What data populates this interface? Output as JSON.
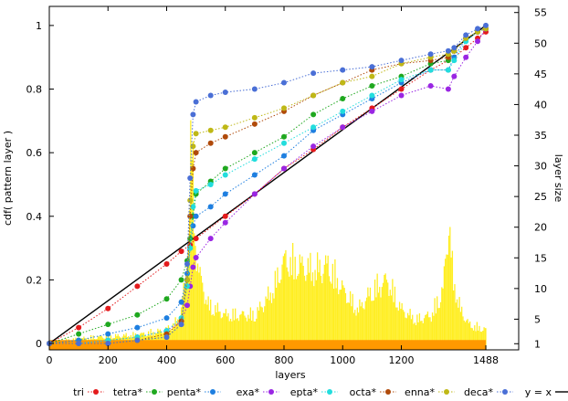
{
  "chart_data": {
    "type": "line",
    "xlabel": "layers",
    "ylabel": "cdf( pattern layer )",
    "y2label": "layer size",
    "xlim": [
      0,
      1600
    ],
    "ylim": [
      -0.02,
      1.06
    ],
    "y2lim": [
      0,
      56
    ],
    "x_ticks": [
      "0",
      "200",
      "400",
      "600",
      "800",
      "1000",
      "1200",
      "1488"
    ],
    "x_tick_values": [
      0,
      200,
      400,
      600,
      800,
      1000,
      1200,
      1488
    ],
    "y_ticks": [
      "0",
      "0.2",
      "0.4",
      "0.6",
      "0.8",
      "1"
    ],
    "y_tick_values": [
      0,
      0.2,
      0.4,
      0.6,
      0.8,
      1
    ],
    "y2_ticks": [
      "1",
      "5",
      "10",
      "15",
      "20",
      "25",
      "30",
      "35",
      "40",
      "45",
      "50",
      "55"
    ],
    "y2_tick_values": [
      1,
      5,
      10,
      15,
      20,
      25,
      30,
      35,
      40,
      45,
      50,
      55
    ],
    "grid": false,
    "legend_position": "bottom",
    "colors": {
      "tri": "#e41a1c",
      "tetra": "#1fa81f",
      "penta": "#1e7fe0",
      "exa": "#9a26e3",
      "epta": "#22dddd",
      "octa": "#b04a0a",
      "enna": "#bfb816",
      "deca": "#4a6fd6",
      "identity": "#000000",
      "layer_size_fill": "#ffee22",
      "layer_size_base": "#ff9900"
    },
    "layer_size_profile": [
      {
        "x": 0,
        "y": 1.5
      },
      {
        "x": 150,
        "y": 2.5
      },
      {
        "x": 300,
        "y": 3
      },
      {
        "x": 400,
        "y": 4
      },
      {
        "x": 440,
        "y": 6
      },
      {
        "x": 465,
        "y": 15
      },
      {
        "x": 480,
        "y": 40
      },
      {
        "x": 483,
        "y": 52
      },
      {
        "x": 486,
        "y": 38
      },
      {
        "x": 495,
        "y": 22
      },
      {
        "x": 510,
        "y": 15
      },
      {
        "x": 540,
        "y": 9
      },
      {
        "x": 600,
        "y": 7
      },
      {
        "x": 700,
        "y": 7
      },
      {
        "x": 760,
        "y": 12
      },
      {
        "x": 800,
        "y": 18
      },
      {
        "x": 850,
        "y": 17
      },
      {
        "x": 900,
        "y": 16
      },
      {
        "x": 950,
        "y": 17
      },
      {
        "x": 1000,
        "y": 12
      },
      {
        "x": 1050,
        "y": 8
      },
      {
        "x": 1100,
        "y": 12
      },
      {
        "x": 1150,
        "y": 14
      },
      {
        "x": 1200,
        "y": 8
      },
      {
        "x": 1250,
        "y": 6
      },
      {
        "x": 1300,
        "y": 7
      },
      {
        "x": 1340,
        "y": 12
      },
      {
        "x": 1360,
        "y": 26
      },
      {
        "x": 1375,
        "y": 14
      },
      {
        "x": 1400,
        "y": 8
      },
      {
        "x": 1430,
        "y": 5
      },
      {
        "x": 1488,
        "y": 4
      }
    ],
    "series": [
      {
        "name": "tri",
        "key": "tri",
        "x": [
          0,
          100,
          200,
          300,
          400,
          450,
          480,
          500,
          600,
          700,
          800,
          900,
          1000,
          1100,
          1200,
          1300,
          1380,
          1420,
          1460,
          1488
        ],
        "y": [
          0,
          0.05,
          0.11,
          0.18,
          0.25,
          0.29,
          0.31,
          0.33,
          0.4,
          0.47,
          0.55,
          0.61,
          0.68,
          0.74,
          0.8,
          0.86,
          0.9,
          0.93,
          0.96,
          0.98
        ]
      },
      {
        "name": "tetra*",
        "key": "tetra",
        "x": [
          0,
          100,
          200,
          300,
          400,
          450,
          470,
          480,
          490,
          500,
          550,
          600,
          700,
          800,
          900,
          1000,
          1100,
          1200,
          1300,
          1360,
          1380,
          1420,
          1460,
          1488
        ],
        "y": [
          0,
          0.03,
          0.06,
          0.09,
          0.14,
          0.2,
          0.26,
          0.33,
          0.4,
          0.47,
          0.51,
          0.55,
          0.6,
          0.65,
          0.72,
          0.77,
          0.81,
          0.84,
          0.88,
          0.89,
          0.92,
          0.96,
          0.98,
          0.99
        ]
      },
      {
        "name": "penta*",
        "key": "penta",
        "x": [
          0,
          100,
          200,
          300,
          400,
          450,
          470,
          480,
          490,
          500,
          550,
          600,
          700,
          800,
          900,
          1000,
          1100,
          1200,
          1300,
          1360,
          1380,
          1420,
          1460,
          1488
        ],
        "y": [
          0,
          0.01,
          0.03,
          0.05,
          0.08,
          0.13,
          0.22,
          0.3,
          0.37,
          0.4,
          0.43,
          0.47,
          0.53,
          0.59,
          0.67,
          0.72,
          0.77,
          0.82,
          0.86,
          0.86,
          0.9,
          0.96,
          0.98,
          0.99
        ]
      },
      {
        "name": "exa*",
        "key": "exa",
        "x": [
          0,
          100,
          200,
          300,
          400,
          450,
          470,
          480,
          490,
          500,
          550,
          600,
          700,
          800,
          900,
          1000,
          1100,
          1200,
          1300,
          1360,
          1380,
          1420,
          1460,
          1488
        ],
        "y": [
          0,
          0.0,
          0.01,
          0.02,
          0.04,
          0.07,
          0.12,
          0.18,
          0.24,
          0.27,
          0.33,
          0.38,
          0.47,
          0.55,
          0.62,
          0.68,
          0.73,
          0.78,
          0.81,
          0.8,
          0.84,
          0.9,
          0.95,
          0.99
        ]
      },
      {
        "name": "epta*",
        "key": "epta",
        "x": [
          0,
          100,
          200,
          300,
          400,
          450,
          470,
          480,
          490,
          500,
          550,
          600,
          700,
          800,
          900,
          1000,
          1100,
          1200,
          1300,
          1360,
          1380,
          1420,
          1460,
          1488
        ],
        "y": [
          0,
          0.0,
          0.01,
          0.02,
          0.04,
          0.08,
          0.18,
          0.3,
          0.43,
          0.48,
          0.5,
          0.53,
          0.58,
          0.63,
          0.68,
          0.73,
          0.78,
          0.83,
          0.86,
          0.86,
          0.89,
          0.95,
          0.98,
          0.99
        ]
      },
      {
        "name": "octa*",
        "key": "octa",
        "x": [
          0,
          100,
          200,
          300,
          400,
          450,
          470,
          480,
          490,
          500,
          550,
          600,
          700,
          800,
          900,
          1000,
          1100,
          1200,
          1300,
          1360,
          1380,
          1420,
          1460,
          1488
        ],
        "y": [
          0,
          0.0,
          0.0,
          0.01,
          0.03,
          0.07,
          0.2,
          0.4,
          0.55,
          0.6,
          0.63,
          0.65,
          0.69,
          0.73,
          0.78,
          0.82,
          0.86,
          0.88,
          0.89,
          0.9,
          0.92,
          0.96,
          0.98,
          0.99
        ]
      },
      {
        "name": "enna*",
        "key": "enna",
        "x": [
          0,
          100,
          200,
          300,
          400,
          450,
          470,
          480,
          490,
          500,
          550,
          600,
          700,
          800,
          900,
          1000,
          1100,
          1200,
          1300,
          1360,
          1380,
          1420,
          1460,
          1488
        ],
        "y": [
          0,
          0.0,
          0.0,
          0.01,
          0.02,
          0.06,
          0.2,
          0.45,
          0.62,
          0.66,
          0.67,
          0.68,
          0.71,
          0.74,
          0.78,
          0.82,
          0.84,
          0.88,
          0.9,
          0.91,
          0.92,
          0.96,
          0.98,
          0.99
        ]
      },
      {
        "name": "deca*",
        "key": "deca",
        "x": [
          0,
          100,
          200,
          300,
          400,
          450,
          470,
          480,
          490,
          500,
          550,
          600,
          700,
          800,
          900,
          1000,
          1100,
          1200,
          1300,
          1360,
          1380,
          1420,
          1460,
          1488
        ],
        "y": [
          0,
          0.0,
          0.0,
          0.01,
          0.02,
          0.06,
          0.25,
          0.52,
          0.72,
          0.76,
          0.78,
          0.79,
          0.8,
          0.82,
          0.85,
          0.86,
          0.87,
          0.89,
          0.91,
          0.92,
          0.93,
          0.97,
          0.99,
          1.0
        ]
      }
    ],
    "identity_line": {
      "name": "y = x",
      "x": [
        0,
        1488
      ],
      "y": [
        0,
        1
      ]
    }
  }
}
